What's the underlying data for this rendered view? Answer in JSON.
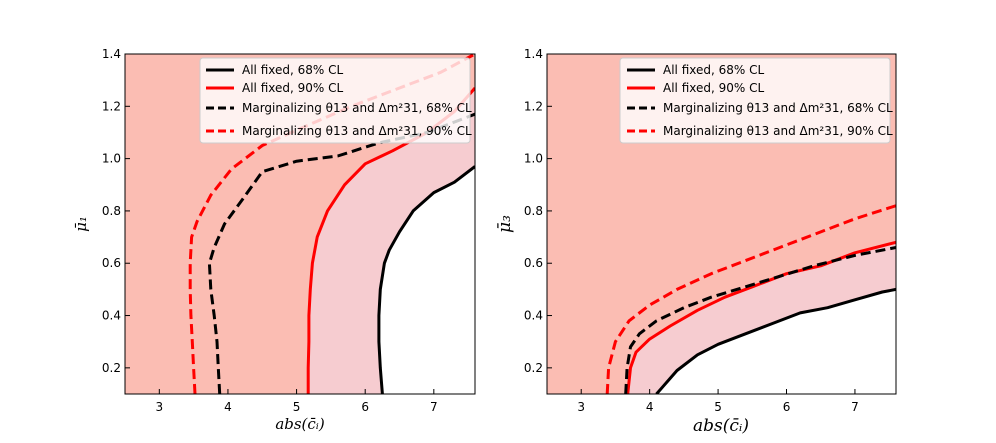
{
  "chart_data": [
    {
      "type": "line",
      "panel": "left",
      "xlabel": "abs(c̄ᵢ)",
      "ylabel": "μ̄₁",
      "xlim": [
        2.5,
        7.6
      ],
      "ylim": [
        0.1,
        1.4
      ],
      "xticks": [
        "3",
        "4",
        "5",
        "6",
        "7"
      ],
      "yticks": [
        "0.2",
        "0.4",
        "0.6",
        "0.8",
        "1.0",
        "1.2",
        "1.4"
      ],
      "legend": [
        {
          "label": "All fixed, 68% CL",
          "color": "#000000",
          "style": "solid"
        },
        {
          "label": "All fixed, 90% CL",
          "color": "#ff0000",
          "style": "solid"
        },
        {
          "label": "Marginalizing θ13 and Δm²31, 68% CL",
          "color": "#000000",
          "style": "dashed"
        },
        {
          "label": "Marginalizing θ13 and Δm²31, 90% CL",
          "color": "#ff0000",
          "style": "dashed"
        }
      ],
      "series": [
        {
          "name": "All fixed, 68% CL",
          "x": [
            6.25,
            6.22,
            6.2,
            6.2,
            6.22,
            6.28,
            6.35,
            6.5,
            6.7,
            7.0,
            7.3,
            7.6
          ],
          "y": [
            0.1,
            0.2,
            0.3,
            0.4,
            0.5,
            0.6,
            0.65,
            0.72,
            0.8,
            0.87,
            0.91,
            0.97
          ]
        },
        {
          "name": "All fixed, 90% CL",
          "x": [
            5.17,
            5.17,
            5.18,
            5.18,
            5.2,
            5.23,
            5.3,
            5.45,
            5.7,
            6.0,
            6.4,
            6.9,
            7.3,
            7.6
          ],
          "y": [
            0.1,
            0.2,
            0.3,
            0.4,
            0.5,
            0.6,
            0.7,
            0.8,
            0.9,
            0.98,
            1.03,
            1.1,
            1.18,
            1.27
          ]
        },
        {
          "name": "Marginalizing θ13 and Δm²31, 68% CL",
          "x": [
            3.88,
            3.86,
            3.84,
            3.8,
            3.75,
            3.73,
            3.8,
            3.95,
            4.2,
            4.5,
            5.0,
            5.6,
            6.2,
            6.9,
            7.6
          ],
          "y": [
            0.1,
            0.2,
            0.3,
            0.4,
            0.5,
            0.6,
            0.66,
            0.75,
            0.84,
            0.95,
            0.99,
            1.01,
            1.06,
            1.1,
            1.17
          ]
        },
        {
          "name": "Marginalizing θ13 and Δm²31, 90% CL",
          "x": [
            3.52,
            3.5,
            3.48,
            3.46,
            3.45,
            3.45,
            3.47,
            3.55,
            3.75,
            4.05,
            4.5,
            5.1,
            5.8,
            6.5,
            7.1,
            7.6
          ],
          "y": [
            0.1,
            0.2,
            0.3,
            0.4,
            0.5,
            0.6,
            0.7,
            0.76,
            0.86,
            0.96,
            1.05,
            1.12,
            1.2,
            1.27,
            1.33,
            1.4
          ]
        }
      ]
    },
    {
      "type": "line",
      "panel": "right",
      "xlabel": "abs(c̄ᵢ)",
      "ylabel": "μ̄₃",
      "xlim": [
        2.5,
        7.6
      ],
      "ylim": [
        0.1,
        1.4
      ],
      "xticks": [
        "3",
        "4",
        "5",
        "6",
        "7"
      ],
      "yticks": [
        "0.2",
        "0.4",
        "0.6",
        "0.8",
        "1.0",
        "1.2",
        "1.4"
      ],
      "legend": [
        {
          "label": "All fixed, 68% CL",
          "color": "#000000",
          "style": "solid"
        },
        {
          "label": "All fixed, 90% CL",
          "color": "#ff0000",
          "style": "solid"
        },
        {
          "label": "Marginalizing θ13 and Δm²31, 68% CL",
          "color": "#000000",
          "style": "dashed"
        },
        {
          "label": "Marginalizing θ13 and Δm²31, 90% CL",
          "color": "#ff0000",
          "style": "dashed"
        }
      ],
      "series": [
        {
          "name": "All fixed, 68% CL",
          "x": [
            4.1,
            4.2,
            4.4,
            4.7,
            5.0,
            5.4,
            5.8,
            6.2,
            6.6,
            7.0,
            7.4,
            7.6
          ],
          "y": [
            0.1,
            0.13,
            0.19,
            0.25,
            0.29,
            0.33,
            0.37,
            0.41,
            0.43,
            0.46,
            0.49,
            0.5
          ]
        },
        {
          "name": "All fixed, 90% CL",
          "x": [
            3.68,
            3.72,
            3.8,
            4.0,
            4.3,
            4.7,
            5.1,
            5.5,
            6.0,
            6.5,
            7.0,
            7.6
          ],
          "y": [
            0.1,
            0.2,
            0.26,
            0.31,
            0.36,
            0.42,
            0.47,
            0.51,
            0.56,
            0.59,
            0.64,
            0.68
          ]
        },
        {
          "name": "Marginalizing θ13 and Δm²31, 68% CL",
          "x": [
            3.65,
            3.67,
            3.72,
            3.85,
            4.1,
            4.5,
            4.9,
            5.4,
            5.9,
            6.4,
            7.0,
            7.6
          ],
          "y": [
            0.1,
            0.2,
            0.28,
            0.33,
            0.38,
            0.43,
            0.47,
            0.51,
            0.55,
            0.59,
            0.63,
            0.66
          ]
        },
        {
          "name": "Marginalizing θ13 and Δm²31, 90% CL",
          "x": [
            3.38,
            3.4,
            3.5,
            3.7,
            4.0,
            4.4,
            4.9,
            5.4,
            5.9,
            6.4,
            7.0,
            7.6
          ],
          "y": [
            0.1,
            0.2,
            0.3,
            0.38,
            0.44,
            0.5,
            0.56,
            0.61,
            0.66,
            0.71,
            0.77,
            0.82
          ]
        }
      ]
    }
  ],
  "colors": {
    "region90": "#fbbdb3",
    "region68": "#f6ccd0",
    "black": "#000000",
    "red": "#ff0000"
  }
}
